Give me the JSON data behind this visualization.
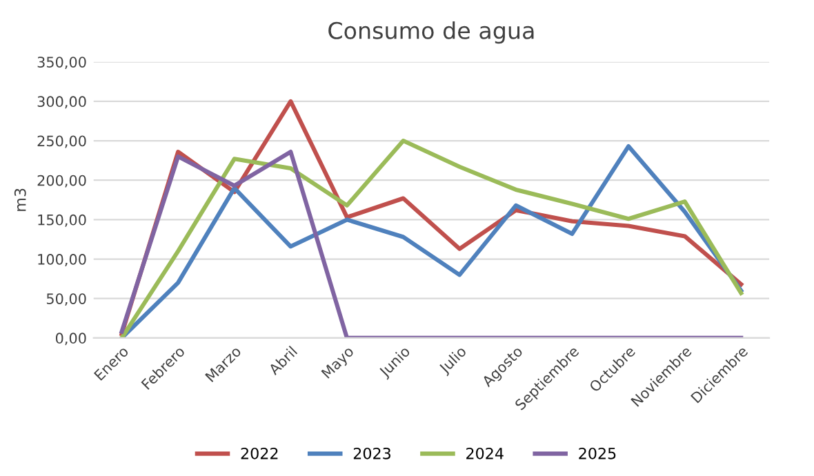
{
  "chart_data": {
    "type": "line",
    "title": "Consumo de agua",
    "ylabel": "m3",
    "categories": [
      "Enero",
      "Febrero",
      "Marzo",
      "Abril",
      "Mayo",
      "Junio",
      "Julio",
      "Agosto",
      "Septiembre",
      "Octubre",
      "Noviembre",
      "Diciembre"
    ],
    "series": [
      {
        "name": "2022",
        "color": "#c0504d",
        "values": [
          5,
          236,
          185,
          300,
          153,
          177,
          113,
          162,
          148,
          142,
          129,
          68
        ]
      },
      {
        "name": "2023",
        "color": "#4f81bd",
        "values": [
          0,
          70,
          190,
          116,
          150,
          128,
          80,
          168,
          132,
          243,
          160,
          60
        ]
      },
      {
        "name": "2024",
        "color": "#9bbb59",
        "values": [
          0,
          110,
          227,
          215,
          168,
          250,
          217,
          188,
          170,
          151,
          173,
          57
        ]
      },
      {
        "name": "2025",
        "color": "#8064a2",
        "values": [
          8,
          230,
          193,
          236,
          0,
          0,
          0,
          0,
          0,
          0,
          0,
          0
        ]
      }
    ],
    "ylim": [
      0,
      350
    ],
    "yticks": [
      {
        "value": 0,
        "label": "0,00"
      },
      {
        "value": 50,
        "label": "50,00"
      },
      {
        "value": 100,
        "label": "100,00"
      },
      {
        "value": 150,
        "label": "150,00"
      },
      {
        "value": 200,
        "label": "200,00"
      },
      {
        "value": 250,
        "label": "250,00"
      },
      {
        "value": 300,
        "label": "300,00"
      },
      {
        "value": 350,
        "label": "350,00"
      }
    ],
    "grid": "y",
    "legend": "bottom",
    "marker": "none",
    "line_style": "solid"
  }
}
